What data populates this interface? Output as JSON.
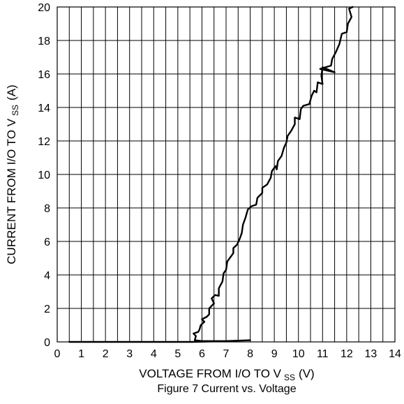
{
  "chart_data": {
    "type": "line",
    "title": "",
    "caption": "Figure 7 Current vs. Voltage",
    "xlabel": {
      "main": "VOLTAGE FROM I/O TO V",
      "sub": "SS",
      "unit": "(V)"
    },
    "ylabel": {
      "main": "CURRENT FROM I/O TO V",
      "sub": "SS",
      "unit": "(A)"
    },
    "xlim": [
      0,
      14
    ],
    "ylim": [
      0,
      20
    ],
    "xticks": [
      0,
      1,
      2,
      3,
      4,
      5,
      6,
      7,
      8,
      9,
      10,
      11,
      12,
      13,
      14
    ],
    "yticks": [
      0,
      2,
      4,
      6,
      8,
      10,
      12,
      14,
      16,
      18,
      20
    ],
    "x_gridlines": [
      0,
      0.5,
      1,
      1.5,
      2,
      2.5,
      3,
      3.5,
      4,
      4.5,
      5,
      5.5,
      6,
      6.5,
      7,
      7.5,
      8,
      8.5,
      9,
      9.5,
      10,
      10.5,
      11,
      11.5,
      12,
      12.5,
      13,
      13.5,
      14
    ],
    "y_gridlines": [
      0,
      2,
      4,
      6,
      8,
      10,
      12,
      14,
      16,
      18,
      20
    ],
    "grid": true,
    "line_color": "#000000",
    "series": [
      {
        "points": [
          [
            0.5,
            0.0
          ],
          [
            5.6,
            0.0
          ],
          [
            7.0,
            0.05
          ],
          [
            8.0,
            0.1
          ],
          [
            7.0,
            0.05
          ],
          [
            6.0,
            0.05
          ],
          [
            5.7,
            0.1
          ],
          [
            5.75,
            0.35
          ],
          [
            5.65,
            0.5
          ],
          [
            5.85,
            0.6
          ],
          [
            5.9,
            0.75
          ],
          [
            5.95,
            1.0
          ],
          [
            6.1,
            1.2
          ],
          [
            6.0,
            1.35
          ],
          [
            6.2,
            1.5
          ],
          [
            6.3,
            1.65
          ],
          [
            6.3,
            2.0
          ],
          [
            6.5,
            2.3
          ],
          [
            6.4,
            2.6
          ],
          [
            6.55,
            2.8
          ],
          [
            6.7,
            2.75
          ],
          [
            6.7,
            3.2
          ],
          [
            6.85,
            3.6
          ],
          [
            6.9,
            4.1
          ],
          [
            7.0,
            4.3
          ],
          [
            7.05,
            4.8
          ],
          [
            7.15,
            5.0
          ],
          [
            7.3,
            5.3
          ],
          [
            7.3,
            5.6
          ],
          [
            7.45,
            5.8
          ],
          [
            7.55,
            6.1
          ],
          [
            7.65,
            6.5
          ],
          [
            7.7,
            7.0
          ],
          [
            7.8,
            7.4
          ],
          [
            7.9,
            7.9
          ],
          [
            8.05,
            8.1
          ],
          [
            8.25,
            8.2
          ],
          [
            8.3,
            8.6
          ],
          [
            8.5,
            8.9
          ],
          [
            8.5,
            9.2
          ],
          [
            8.7,
            9.4
          ],
          [
            8.85,
            9.8
          ],
          [
            8.9,
            10.2
          ],
          [
            9.05,
            10.5
          ],
          [
            9.1,
            10.3
          ],
          [
            9.15,
            10.8
          ],
          [
            9.3,
            11.1
          ],
          [
            9.4,
            11.6
          ],
          [
            9.5,
            11.9
          ],
          [
            9.55,
            12.3
          ],
          [
            9.7,
            12.6
          ],
          [
            9.85,
            13.0
          ],
          [
            9.85,
            13.4
          ],
          [
            10.05,
            13.3
          ],
          [
            10.1,
            13.9
          ],
          [
            10.2,
            14.1
          ],
          [
            10.45,
            14.2
          ],
          [
            10.55,
            14.7
          ],
          [
            10.65,
            15.0
          ],
          [
            10.75,
            14.9
          ],
          [
            10.8,
            15.5
          ],
          [
            11.0,
            15.4
          ],
          [
            10.95,
            15.9
          ],
          [
            11.0,
            16.4
          ],
          [
            11.5,
            16.1
          ],
          [
            10.9,
            16.3
          ],
          [
            11.35,
            16.5
          ],
          [
            11.4,
            16.9
          ],
          [
            11.55,
            17.3
          ],
          [
            11.7,
            17.8
          ],
          [
            11.8,
            18.4
          ],
          [
            12.0,
            18.5
          ],
          [
            12.05,
            19.0
          ],
          [
            12.2,
            19.4
          ],
          [
            12.1,
            19.9
          ],
          [
            12.25,
            20.0
          ]
        ]
      }
    ]
  }
}
